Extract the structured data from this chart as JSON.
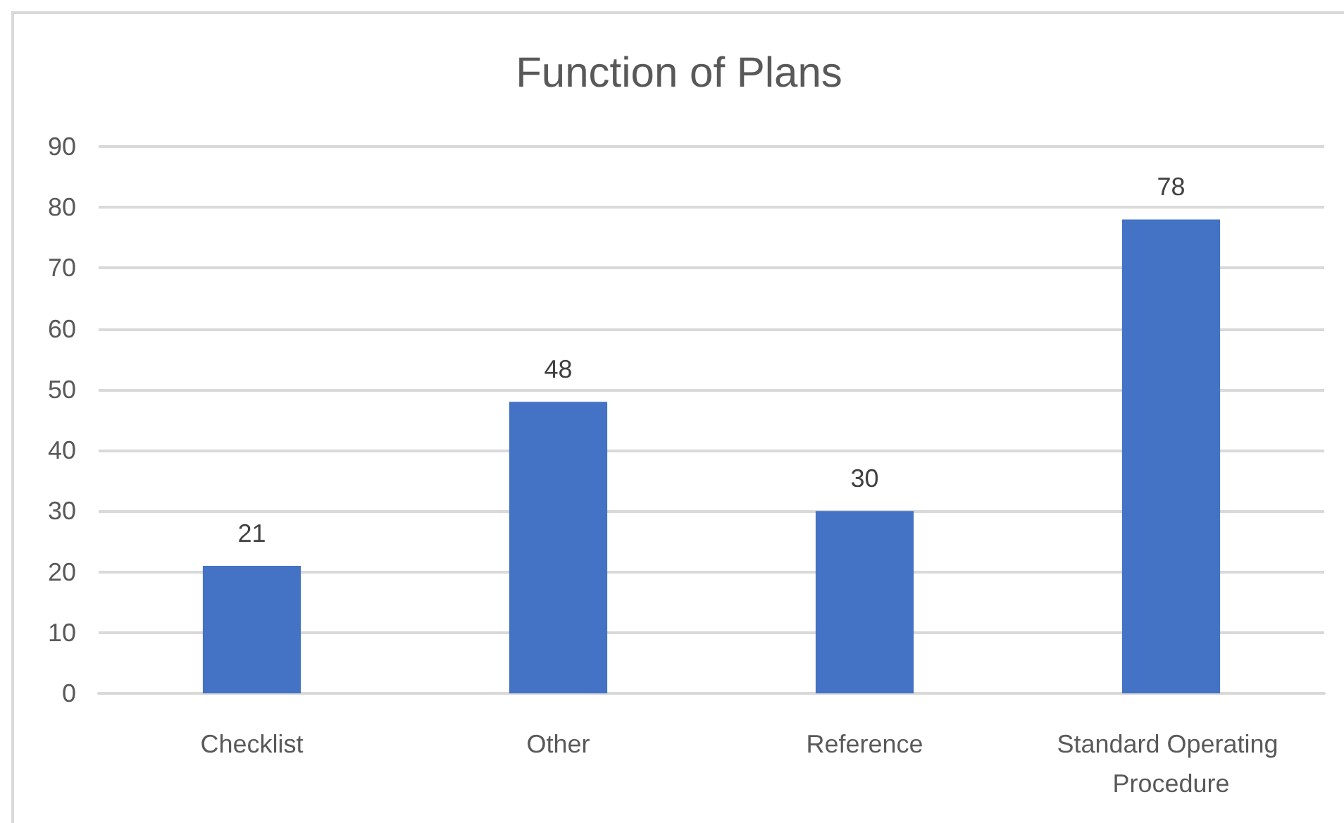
{
  "chart_data": {
    "type": "bar",
    "title": "Function of Plans",
    "categories": [
      "Checklist",
      "Other",
      "Reference",
      "Standard Operating Procedure"
    ],
    "values": [
      21,
      48,
      30,
      78
    ],
    "color": "#4472c4",
    "ylim": [
      0,
      90
    ],
    "yticks": [
      0,
      10,
      20,
      30,
      40,
      50,
      60,
      70,
      80,
      90
    ],
    "grid": "y",
    "data_labels": true
  }
}
